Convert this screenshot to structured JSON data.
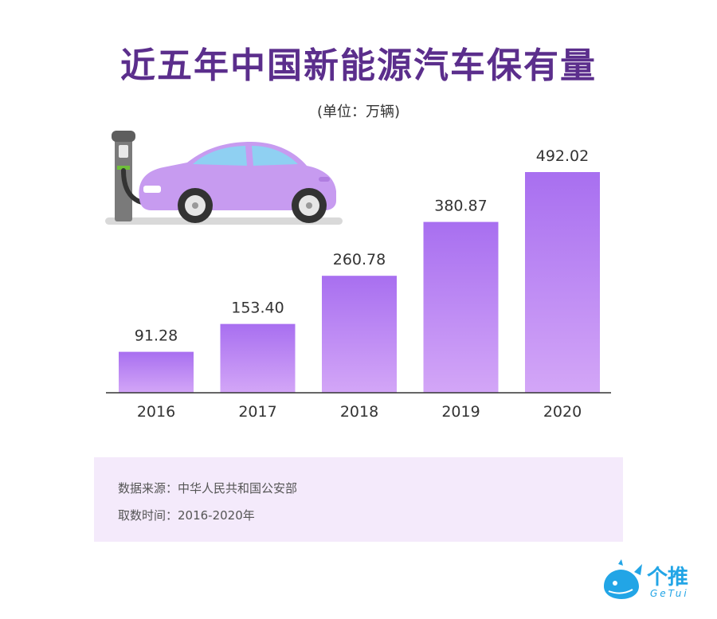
{
  "title": "近五年中国新能源汽车保有量",
  "unit": "(单位：万辆)",
  "colors": {
    "title": "#5b2e8c",
    "bar_top": "#a86ff0",
    "bar_bottom": "#d3a6f7",
    "car": "#c79bf0",
    "panel": "#f4eafb",
    "brand": "#22a5e6"
  },
  "chart_data": {
    "type": "bar",
    "title": "近五年中国新能源汽车保有量",
    "subtitle": "(单位：万辆)",
    "categories": [
      "2016",
      "2017",
      "2018",
      "2019",
      "2020"
    ],
    "values": [
      91.28,
      153.4,
      260.78,
      380.87,
      492.02
    ],
    "value_labels": [
      "91.28",
      "153.40",
      "260.78",
      "380.87",
      "492.02"
    ],
    "ylim": [
      0,
      492.02
    ],
    "grid": false,
    "legend": "none"
  },
  "source": {
    "line1": "数据来源：中华人民共和国公安部",
    "line2": "取数时间：2016-2020年"
  },
  "brand": {
    "name": "个推",
    "sub": "GeTui"
  },
  "icons": [
    "ev-car-illustration",
    "charging-station-icon",
    "getui-whale-logo"
  ]
}
